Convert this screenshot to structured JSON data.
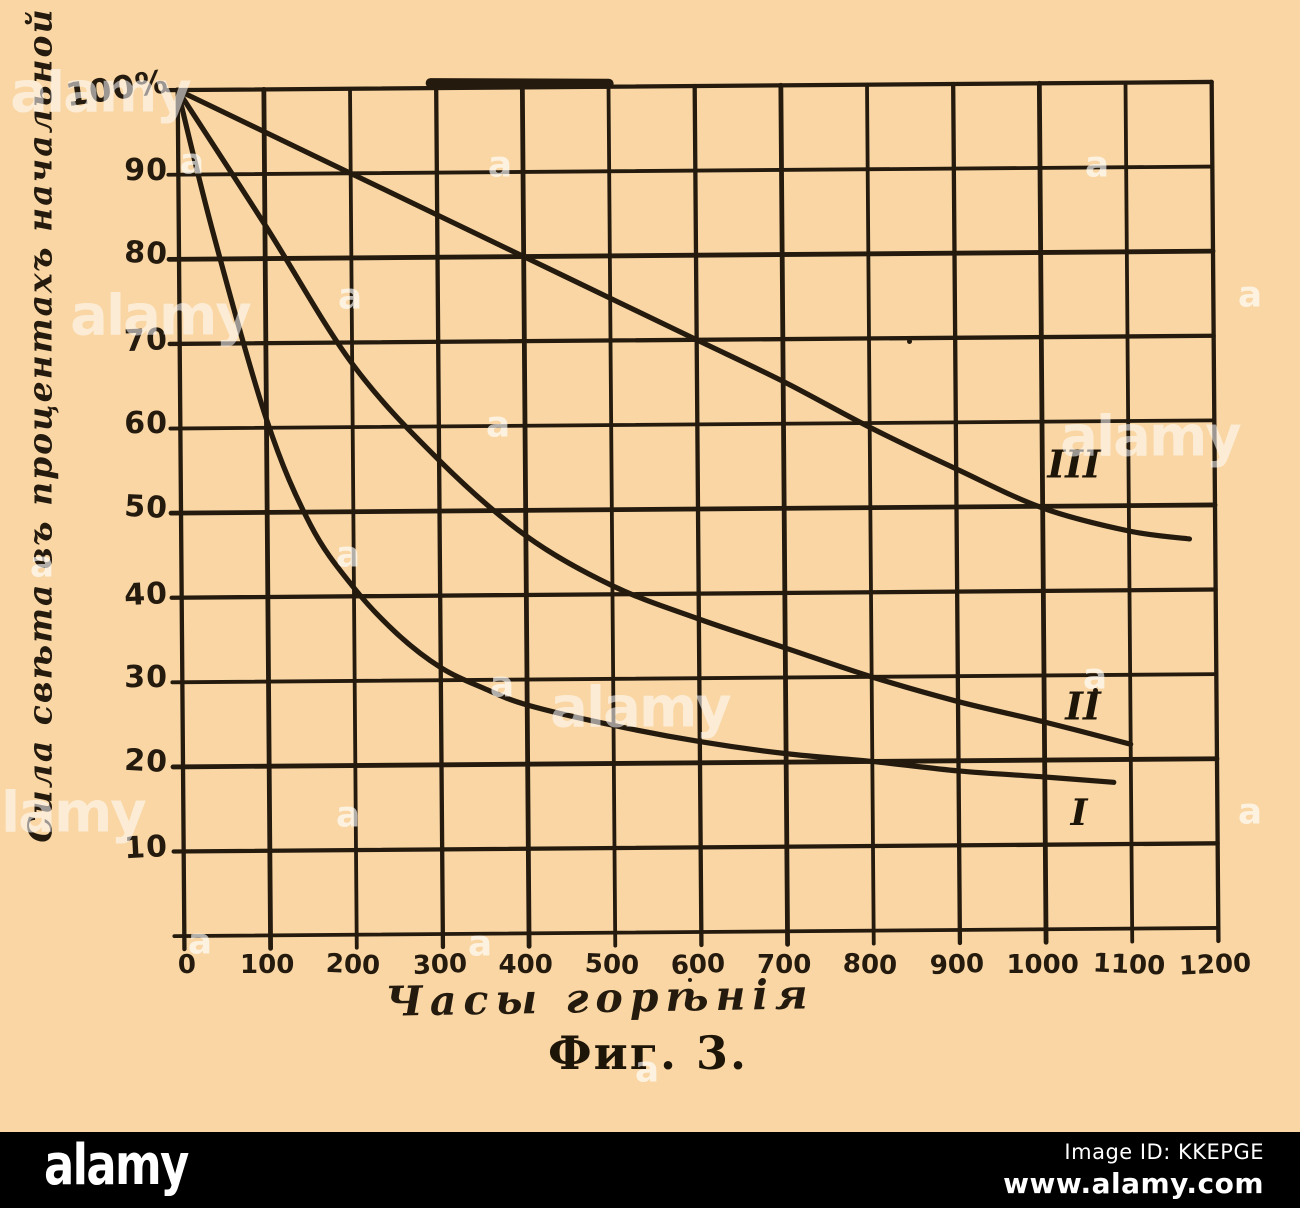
{
  "figure": {
    "caption": "Фиг. 3.",
    "y_axis_title": "Сила свѣта въ процентахъ начальной",
    "x_axis_title": "Часы горѣнія",
    "y_tick_labels": [
      "100%",
      "90",
      "80",
      "70",
      "60",
      "50",
      "40",
      "30",
      "20",
      "10"
    ],
    "x_tick_labels": [
      "0",
      "100",
      "200",
      "300",
      "400",
      "500",
      "600",
      "700",
      "800",
      "900",
      "1000",
      "1100",
      "1200"
    ],
    "curve_labels": {
      "one": "I",
      "two": "II",
      "three": "III"
    }
  },
  "chart_data": {
    "type": "line",
    "title": "Фиг. 3.",
    "xlabel": "Часы горѣнія",
    "ylabel": "Сила свѣта въ процентахъ начальной",
    "xlim": [
      0,
      1200
    ],
    "ylim": [
      0,
      100
    ],
    "x_ticks": [
      0,
      100,
      200,
      300,
      400,
      500,
      600,
      700,
      800,
      900,
      1000,
      1100,
      1200
    ],
    "y_ticks": [
      0,
      10,
      20,
      30,
      40,
      50,
      60,
      70,
      80,
      90,
      100
    ],
    "grid": true,
    "legend_position": "labels-on-curves",
    "series": [
      {
        "name": "I",
        "x": [
          0,
          40,
          100,
          150,
          200,
          250,
          300,
          350,
          400,
          500,
          600,
          700,
          800,
          900,
          1000,
          1080
        ],
        "y": [
          100,
          83,
          61,
          48.5,
          41,
          35.5,
          31.5,
          29,
          27,
          24.5,
          22.5,
          21,
          20,
          18.8,
          18,
          17.3
        ]
      },
      {
        "name": "II",
        "x": [
          0,
          100,
          200,
          300,
          400,
          500,
          600,
          700,
          800,
          900,
          1000,
          1100
        ],
        "y": [
          100,
          84,
          67.5,
          56,
          47,
          41,
          37,
          33.5,
          30,
          27,
          24.5,
          21.8
        ]
      },
      {
        "name": "III",
        "x": [
          0,
          100,
          200,
          300,
          400,
          500,
          600,
          700,
          800,
          900,
          1000,
          1100,
          1170
        ],
        "y": [
          100,
          95,
          90,
          85,
          80,
          75,
          70,
          65,
          59.5,
          54.5,
          49.8,
          47,
          46
        ]
      }
    ]
  },
  "watermark": {
    "brand_text": "alamy",
    "mark_text": "a"
  },
  "footer": {
    "logo": "alamy",
    "image_id": "Image ID: KKEPGE",
    "url": "www.alamy.com"
  },
  "colors": {
    "paper": "#f9d6a3",
    "ink": "#241a0e",
    "footer_bg": "#000000",
    "watermark": "#ffffff"
  }
}
